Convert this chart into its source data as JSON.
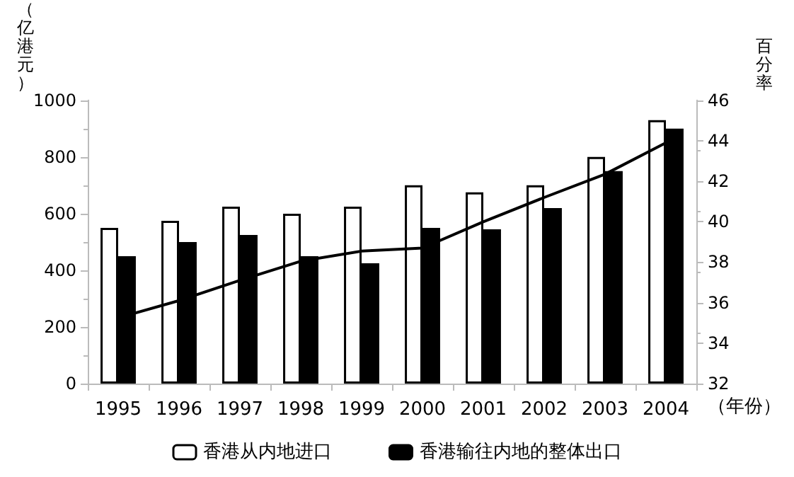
{
  "chart_data": {
    "type": "bar",
    "xlabel": "（年份）",
    "ylabel": "（亿港元）",
    "y2label": "百分率",
    "categories": [
      "1995",
      "1996",
      "1997",
      "1998",
      "1999",
      "2000",
      "2001",
      "2002",
      "2003",
      "2004"
    ],
    "series": [
      {
        "name": "香港从内地进口",
        "color": "#ffffff",
        "values": [
          550,
          575,
          625,
          600,
          625,
          700,
          675,
          700,
          800,
          930
        ]
      },
      {
        "name": "香港输往内地的整体出口",
        "color": "#000000",
        "values": [
          450,
          500,
          525,
          450,
          425,
          550,
          545,
          620,
          750,
          900
        ]
      },
      {
        "type": "line",
        "axis": "y2",
        "color": "#000000",
        "values": [
          35.25,
          36.1,
          37.1,
          38.05,
          38.55,
          38.7,
          40.0,
          41.2,
          42.35,
          43.9
        ]
      }
    ],
    "ylim": [
      0,
      1000
    ],
    "yticks": [
      0,
      200,
      400,
      600,
      800,
      1000
    ],
    "y2lim": [
      32,
      46
    ],
    "y2ticks": [
      32,
      34,
      36,
      38,
      40,
      42,
      44,
      46
    ],
    "grid": false,
    "legend": "bottom",
    "marker": "none",
    "line_style": "solid"
  }
}
